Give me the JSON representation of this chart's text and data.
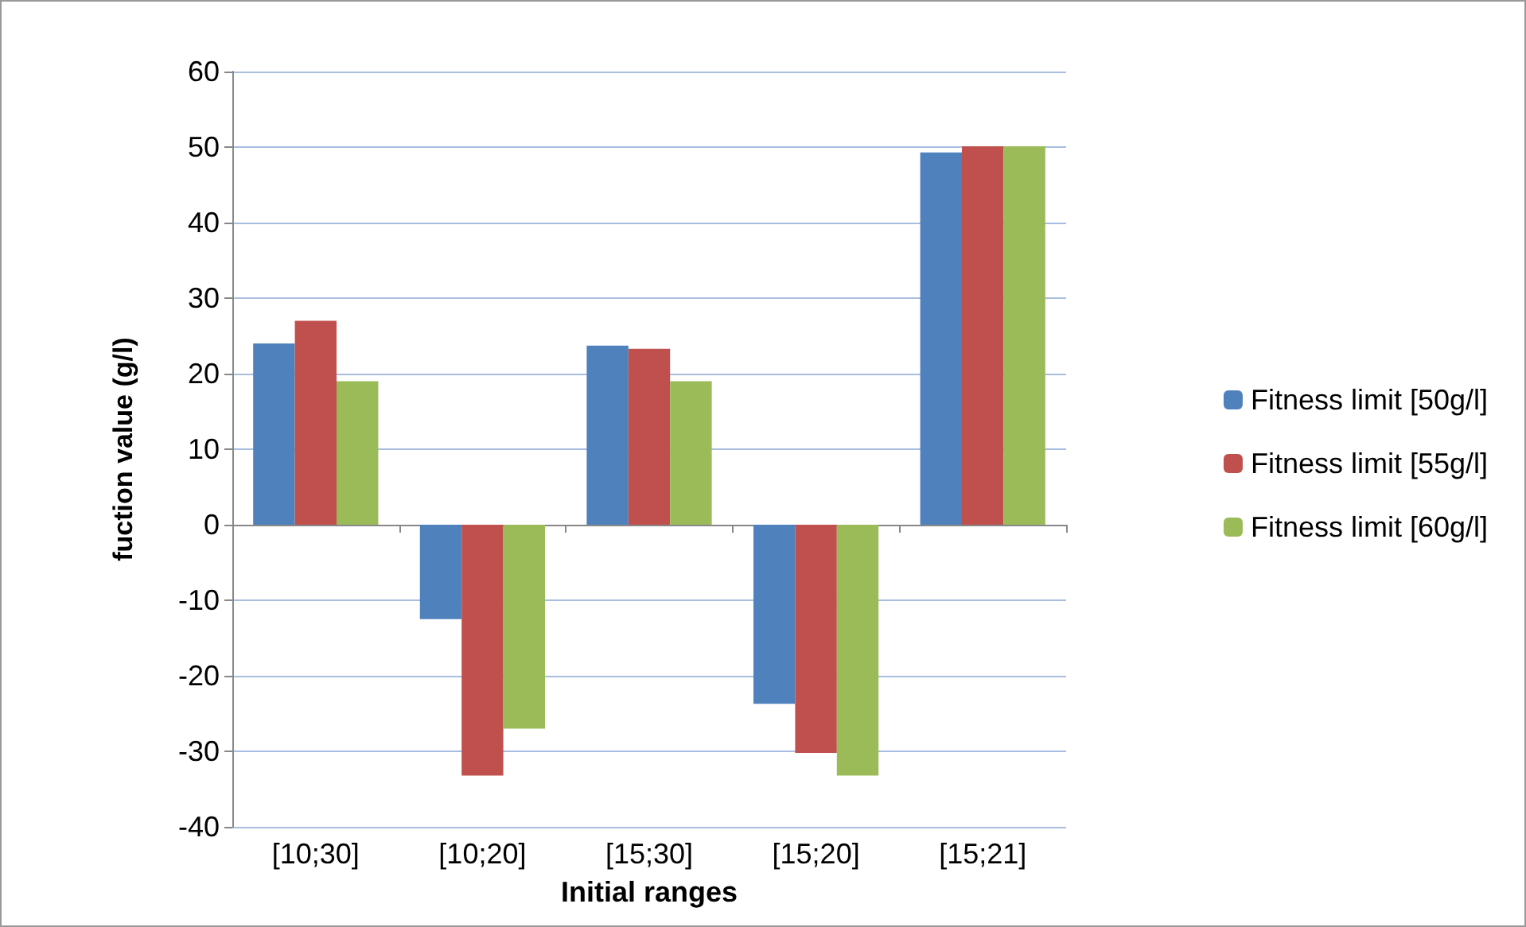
{
  "chart_data": {
    "type": "bar",
    "xlabel": "Initial ranges",
    "ylabel": "fuction value (g/l)",
    "categories": [
      "[10;30]",
      "[10;20]",
      "[15;30]",
      "[15;20]",
      "[15;21]"
    ],
    "series": [
      {
        "name": "Fitness limit [50g/l]",
        "color": "#4f81bd",
        "values": [
          24,
          -12.5,
          23.7,
          -23.7,
          49.3
        ]
      },
      {
        "name": "Fitness limit [55g/l]",
        "color": "#c0504d",
        "values": [
          27,
          -33.2,
          23.3,
          -30.2,
          50.1
        ]
      },
      {
        "name": "Fitness limit [60g/l]",
        "color": "#9bbb59",
        "values": [
          19,
          -27,
          19,
          -33.2,
          50.1
        ]
      }
    ],
    "ylim": [
      -40,
      60
    ],
    "yticks": [
      -40,
      -30,
      -20,
      -10,
      0,
      10,
      20,
      30,
      40,
      50,
      60
    ],
    "grid": "y",
    "legend": "right"
  }
}
